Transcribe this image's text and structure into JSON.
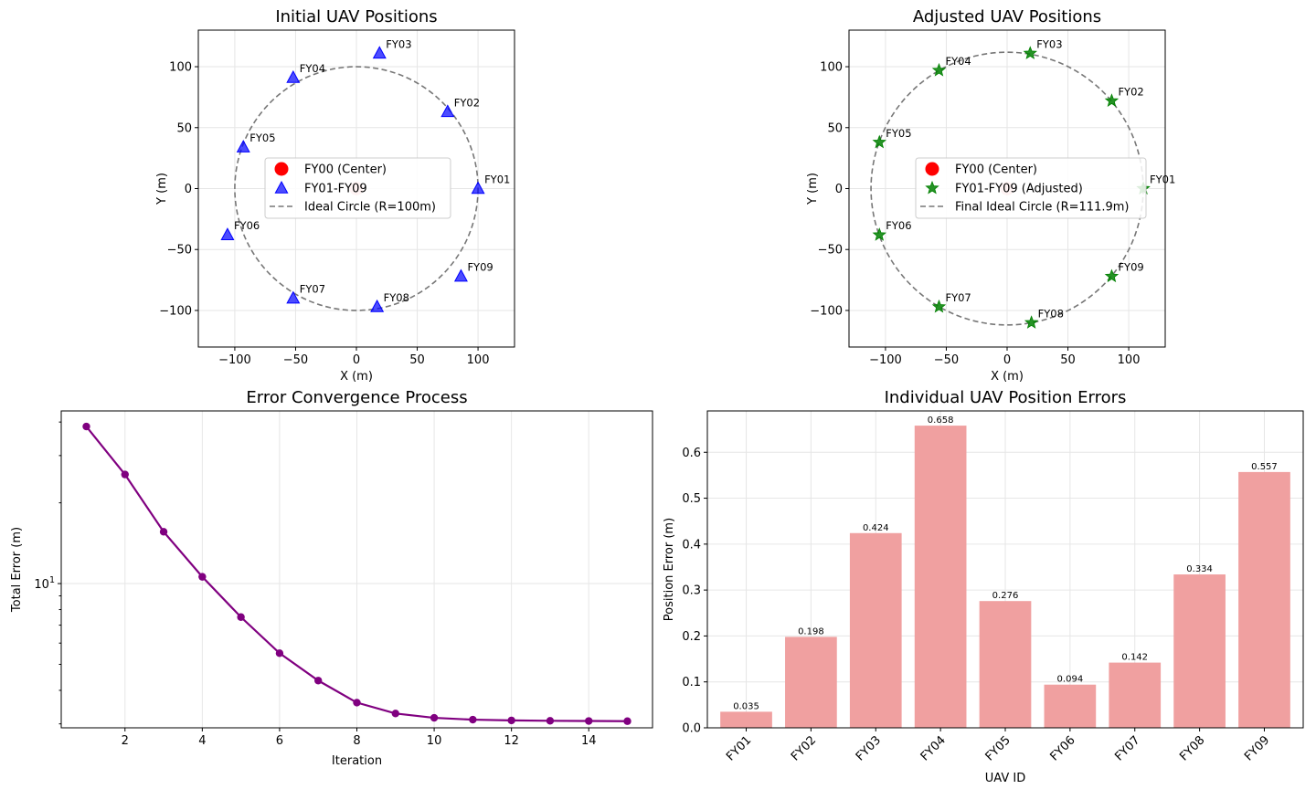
{
  "chart_data": [
    {
      "type": "scatter",
      "title": "Initial UAV Positions",
      "xlabel": "X (m)",
      "ylabel": "Y (m)",
      "xlim": [
        -130,
        130
      ],
      "ylim": [
        -130,
        130
      ],
      "xticks": [
        -100,
        -50,
        0,
        50,
        100
      ],
      "yticks": [
        -100,
        -50,
        0,
        50,
        100
      ],
      "xtick_labels": [
        "−100",
        "−50",
        "0",
        "50",
        "100"
      ],
      "ytick_labels": [
        "−100",
        "−50",
        "0",
        "50",
        "100"
      ],
      "grid": true,
      "center": {
        "label": "FY00 (Center)",
        "x": 0,
        "y": 0,
        "color": "#ff0000"
      },
      "circle": {
        "label": "Ideal Circle (R=100m)",
        "r": 100
      },
      "marker": "triangle",
      "marker_color": "#0000ff",
      "series_label": "FY01-FY09",
      "legend_position": "center",
      "points": [
        {
          "id": "FY01",
          "x": 100,
          "y": 0
        },
        {
          "id": "FY02",
          "x": 75,
          "y": 63
        },
        {
          "id": "FY03",
          "x": 19,
          "y": 111
        },
        {
          "id": "FY04",
          "x": -52,
          "y": 91
        },
        {
          "id": "FY05",
          "x": -93,
          "y": 34
        },
        {
          "id": "FY06",
          "x": -106,
          "y": -38
        },
        {
          "id": "FY07",
          "x": -52,
          "y": -90
        },
        {
          "id": "FY08",
          "x": 17,
          "y": -97
        },
        {
          "id": "FY09",
          "x": 86,
          "y": -72
        }
      ]
    },
    {
      "type": "scatter",
      "title": "Adjusted UAV Positions",
      "xlabel": "X (m)",
      "ylabel": "Y (m)",
      "xlim": [
        -130,
        130
      ],
      "ylim": [
        -130,
        130
      ],
      "xticks": [
        -100,
        -50,
        0,
        50,
        100
      ],
      "yticks": [
        -100,
        -50,
        0,
        50,
        100
      ],
      "xtick_labels": [
        "−100",
        "−50",
        "0",
        "50",
        "100"
      ],
      "ytick_labels": [
        "−100",
        "−50",
        "0",
        "50",
        "100"
      ],
      "grid": true,
      "center": {
        "label": "FY00 (Center)",
        "x": 0,
        "y": 0,
        "color": "#ff0000"
      },
      "circle": {
        "label": "Final Ideal Circle (R=111.9m)",
        "r": 111.9
      },
      "marker": "star",
      "marker_color": "#008000",
      "series_label": "FY01-FY09 (Adjusted)",
      "legend_position": "center",
      "points": [
        {
          "id": "FY01",
          "x": 112,
          "y": 0
        },
        {
          "id": "FY02",
          "x": 86,
          "y": 72
        },
        {
          "id": "FY03",
          "x": 19,
          "y": 111
        },
        {
          "id": "FY04",
          "x": -56,
          "y": 97
        },
        {
          "id": "FY05",
          "x": -105,
          "y": 38
        },
        {
          "id": "FY06",
          "x": -105,
          "y": -38
        },
        {
          "id": "FY07",
          "x": -56,
          "y": -97
        },
        {
          "id": "FY08",
          "x": 20,
          "y": -110
        },
        {
          "id": "FY09",
          "x": 86,
          "y": -72
        }
      ]
    },
    {
      "type": "line",
      "title": "Error Convergence Process",
      "xlabel": "Iteration",
      "ylabel": "Total Error (m)",
      "yscale": "log",
      "xlim": [
        0.35,
        15.65
      ],
      "ylim": [
        2.9,
        44
      ],
      "xticks": [
        2,
        4,
        6,
        8,
        10,
        12,
        14
      ],
      "xtick_labels": [
        "2",
        "4",
        "6",
        "8",
        "10",
        "12",
        "14"
      ],
      "ytick_major_base": "10",
      "ytick_major_exp": "1",
      "color": "#800080",
      "grid": true,
      "x": [
        1,
        2,
        3,
        4,
        5,
        6,
        7,
        8,
        9,
        10,
        11,
        12,
        13,
        14,
        15
      ],
      "y": [
        38.5,
        25.5,
        15.6,
        10.6,
        7.5,
        5.5,
        4.35,
        3.6,
        3.28,
        3.16,
        3.11,
        3.09,
        3.08,
        3.075,
        3.07
      ]
    },
    {
      "type": "bar",
      "title": "Individual UAV Position Errors",
      "xlabel": "UAV ID",
      "ylabel": "Position Error (m)",
      "ylim": [
        0,
        0.69
      ],
      "yticks": [
        0.0,
        0.1,
        0.2,
        0.3,
        0.4,
        0.5,
        0.6
      ],
      "ytick_labels": [
        "0.0",
        "0.1",
        "0.2",
        "0.3",
        "0.4",
        "0.5",
        "0.6"
      ],
      "color": "#f0a0a0",
      "grid": true,
      "categories": [
        "FY01",
        "FY02",
        "FY03",
        "FY04",
        "FY05",
        "FY06",
        "FY07",
        "FY08",
        "FY09"
      ],
      "values": [
        0.035,
        0.198,
        0.424,
        0.658,
        0.276,
        0.094,
        0.142,
        0.334,
        0.557
      ],
      "value_labels": [
        "0.035",
        "0.198",
        "0.424",
        "0.658",
        "0.276",
        "0.094",
        "0.142",
        "0.334",
        "0.557"
      ]
    }
  ]
}
